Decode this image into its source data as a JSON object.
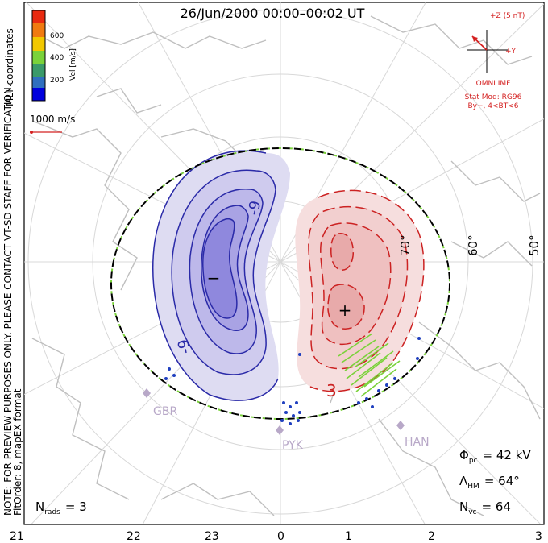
{
  "title": "26/Jun/2000 00:00–00:02 UT",
  "colorbar": {
    "unit_label": "Vel [m/s]",
    "ticks": [
      "600",
      "400",
      "200"
    ],
    "colors": [
      "#0000dd",
      "#2f6fbf",
      "#3a9a6a",
      "#7ad23a",
      "#f2c800",
      "#f07a10",
      "#e82a10"
    ]
  },
  "coordinates_label": "MLT coordinates",
  "reference_vector_label": "1000 m/s",
  "side_note": [
    "NOTE: FOR PREVIEW PURPOSES ONLY. PLEASE CONTACT VT-SD STAFF FOR VERIFICATION.",
    "FitOrder: 8, mapEX format"
  ],
  "imf": {
    "scale_label": "+Z (5 nT)",
    "y_label": "+Y",
    "source_label": "OMNI IMF",
    "model_line1": "Stat Mod: RG96",
    "model_line2": "By−, 4<BT<6",
    "color": "#d42020"
  },
  "latitude_labels": [
    "60°",
    "50°",
    "70°"
  ],
  "contour_labels": {
    "negative": "-9",
    "negative_low": "-9",
    "positive": "3"
  },
  "extrema_markers": {
    "min": "−",
    "max": "+"
  },
  "stations": [
    "GBR",
    "PYK",
    "HAN"
  ],
  "stats": {
    "phi_pc": {
      "symbol": "Φ",
      "sub": "pc",
      "value": "= 42 kV"
    },
    "lambda_hm": {
      "symbol": "Λ",
      "sub": "HM",
      "value": "= 64°"
    },
    "n_vc": {
      "symbol": "N",
      "sub": "vc",
      "value": "= 64"
    },
    "n_rads": {
      "symbol": "N",
      "sub": "rads",
      "value": "= 3"
    }
  },
  "mlt_axis_labels": [
    "21",
    "22",
    "23",
    "0",
    "1",
    "2",
    "3"
  ],
  "colors": {
    "negative_contour": "#2a2aa8",
    "positive_contour": "#cc2222",
    "boundary": "#7ad23a",
    "land": "#bfbfbf",
    "grid": "#d8d8d8"
  }
}
